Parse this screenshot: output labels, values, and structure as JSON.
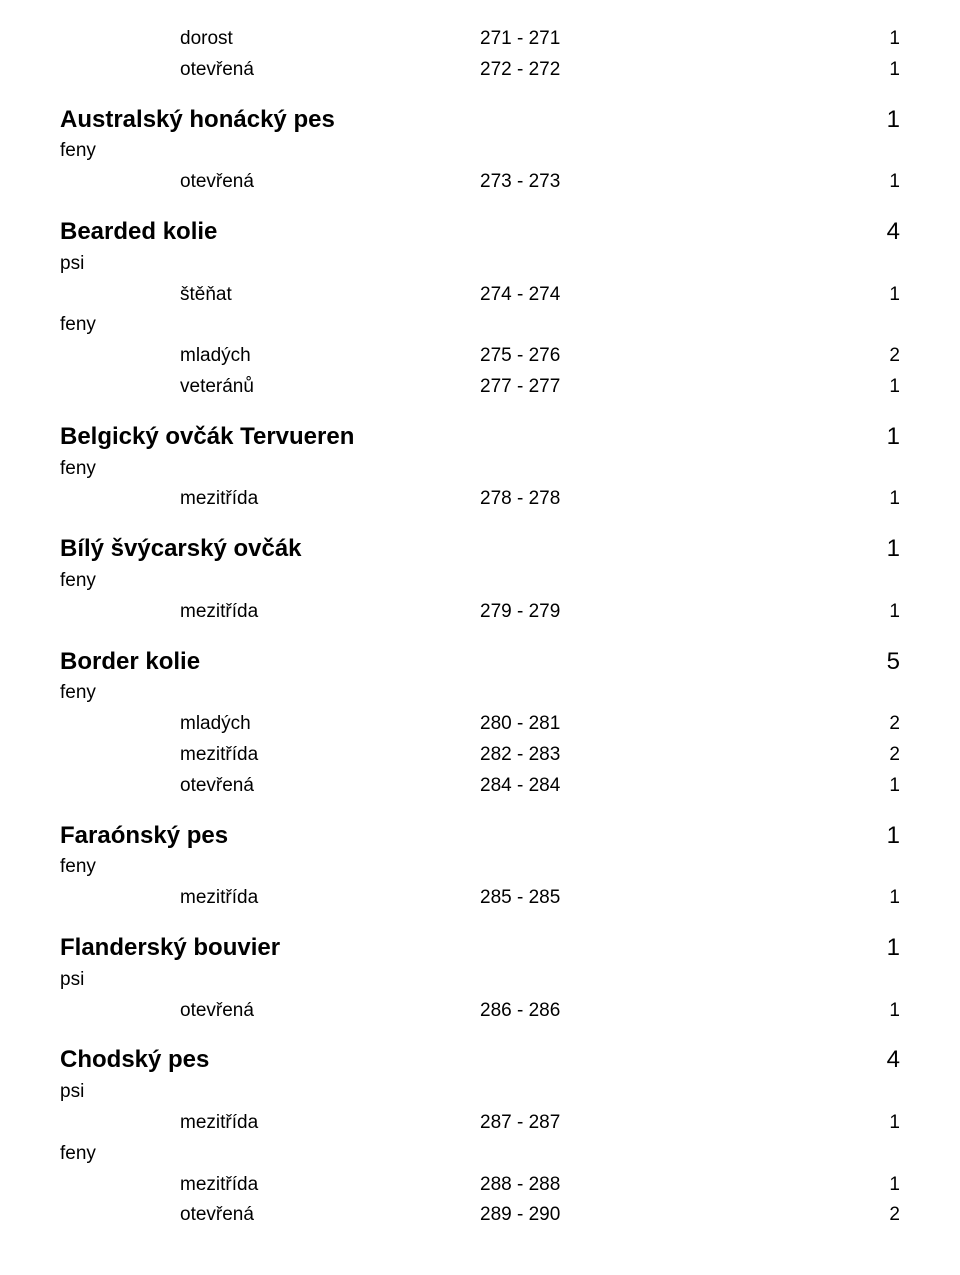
{
  "top_classes": [
    {
      "label": "dorost",
      "range": "271 - 271",
      "count": "1"
    },
    {
      "label": "otevřená",
      "range": "272 - 272",
      "count": "1"
    }
  ],
  "breeds": [
    {
      "name": "Australský honácký pes",
      "count": "1",
      "sections": [
        {
          "gender": "feny",
          "classes": [
            {
              "label": "otevřená",
              "range": "273 - 273",
              "count": "1"
            }
          ]
        }
      ]
    },
    {
      "name": "Bearded kolie",
      "count": "4",
      "sections": [
        {
          "gender": "psi",
          "classes": [
            {
              "label": "štěňat",
              "range": "274 - 274",
              "count": "1"
            }
          ]
        },
        {
          "gender": "feny",
          "classes": [
            {
              "label": "mladých",
              "range": "275 - 276",
              "count": "2"
            },
            {
              "label": "veteránů",
              "range": "277 - 277",
              "count": "1"
            }
          ]
        }
      ]
    },
    {
      "name": "Belgický ovčák Tervueren",
      "count": "1",
      "sections": [
        {
          "gender": "feny",
          "classes": [
            {
              "label": "mezitřída",
              "range": "278 - 278",
              "count": "1"
            }
          ]
        }
      ]
    },
    {
      "name": "Bílý švýcarský ovčák",
      "count": "1",
      "sections": [
        {
          "gender": "feny",
          "classes": [
            {
              "label": "mezitřída",
              "range": "279 - 279",
              "count": "1"
            }
          ]
        }
      ]
    },
    {
      "name": "Border kolie",
      "count": "5",
      "sections": [
        {
          "gender": "feny",
          "classes": [
            {
              "label": "mladých",
              "range": "280 - 281",
              "count": "2"
            },
            {
              "label": "mezitřída",
              "range": "282 - 283",
              "count": "2"
            },
            {
              "label": "otevřená",
              "range": "284 - 284",
              "count": "1"
            }
          ]
        }
      ]
    },
    {
      "name": "Faraónský pes",
      "count": "1",
      "sections": [
        {
          "gender": "feny",
          "classes": [
            {
              "label": "mezitřída",
              "range": "285 - 285",
              "count": "1"
            }
          ]
        }
      ]
    },
    {
      "name": "Flanderský bouvier",
      "count": "1",
      "sections": [
        {
          "gender": "psi",
          "classes": [
            {
              "label": "otevřená",
              "range": "286 - 286",
              "count": "1"
            }
          ]
        }
      ]
    },
    {
      "name": "Chodský pes",
      "count": "4",
      "sections": [
        {
          "gender": "psi",
          "classes": [
            {
              "label": "mezitřída",
              "range": "287 - 287",
              "count": "1"
            }
          ]
        },
        {
          "gender": "feny",
          "classes": [
            {
              "label": "mezitřída",
              "range": "288 - 288",
              "count": "1"
            },
            {
              "label": "otevřená",
              "range": "289 - 290",
              "count": "2"
            }
          ]
        }
      ]
    }
  ]
}
